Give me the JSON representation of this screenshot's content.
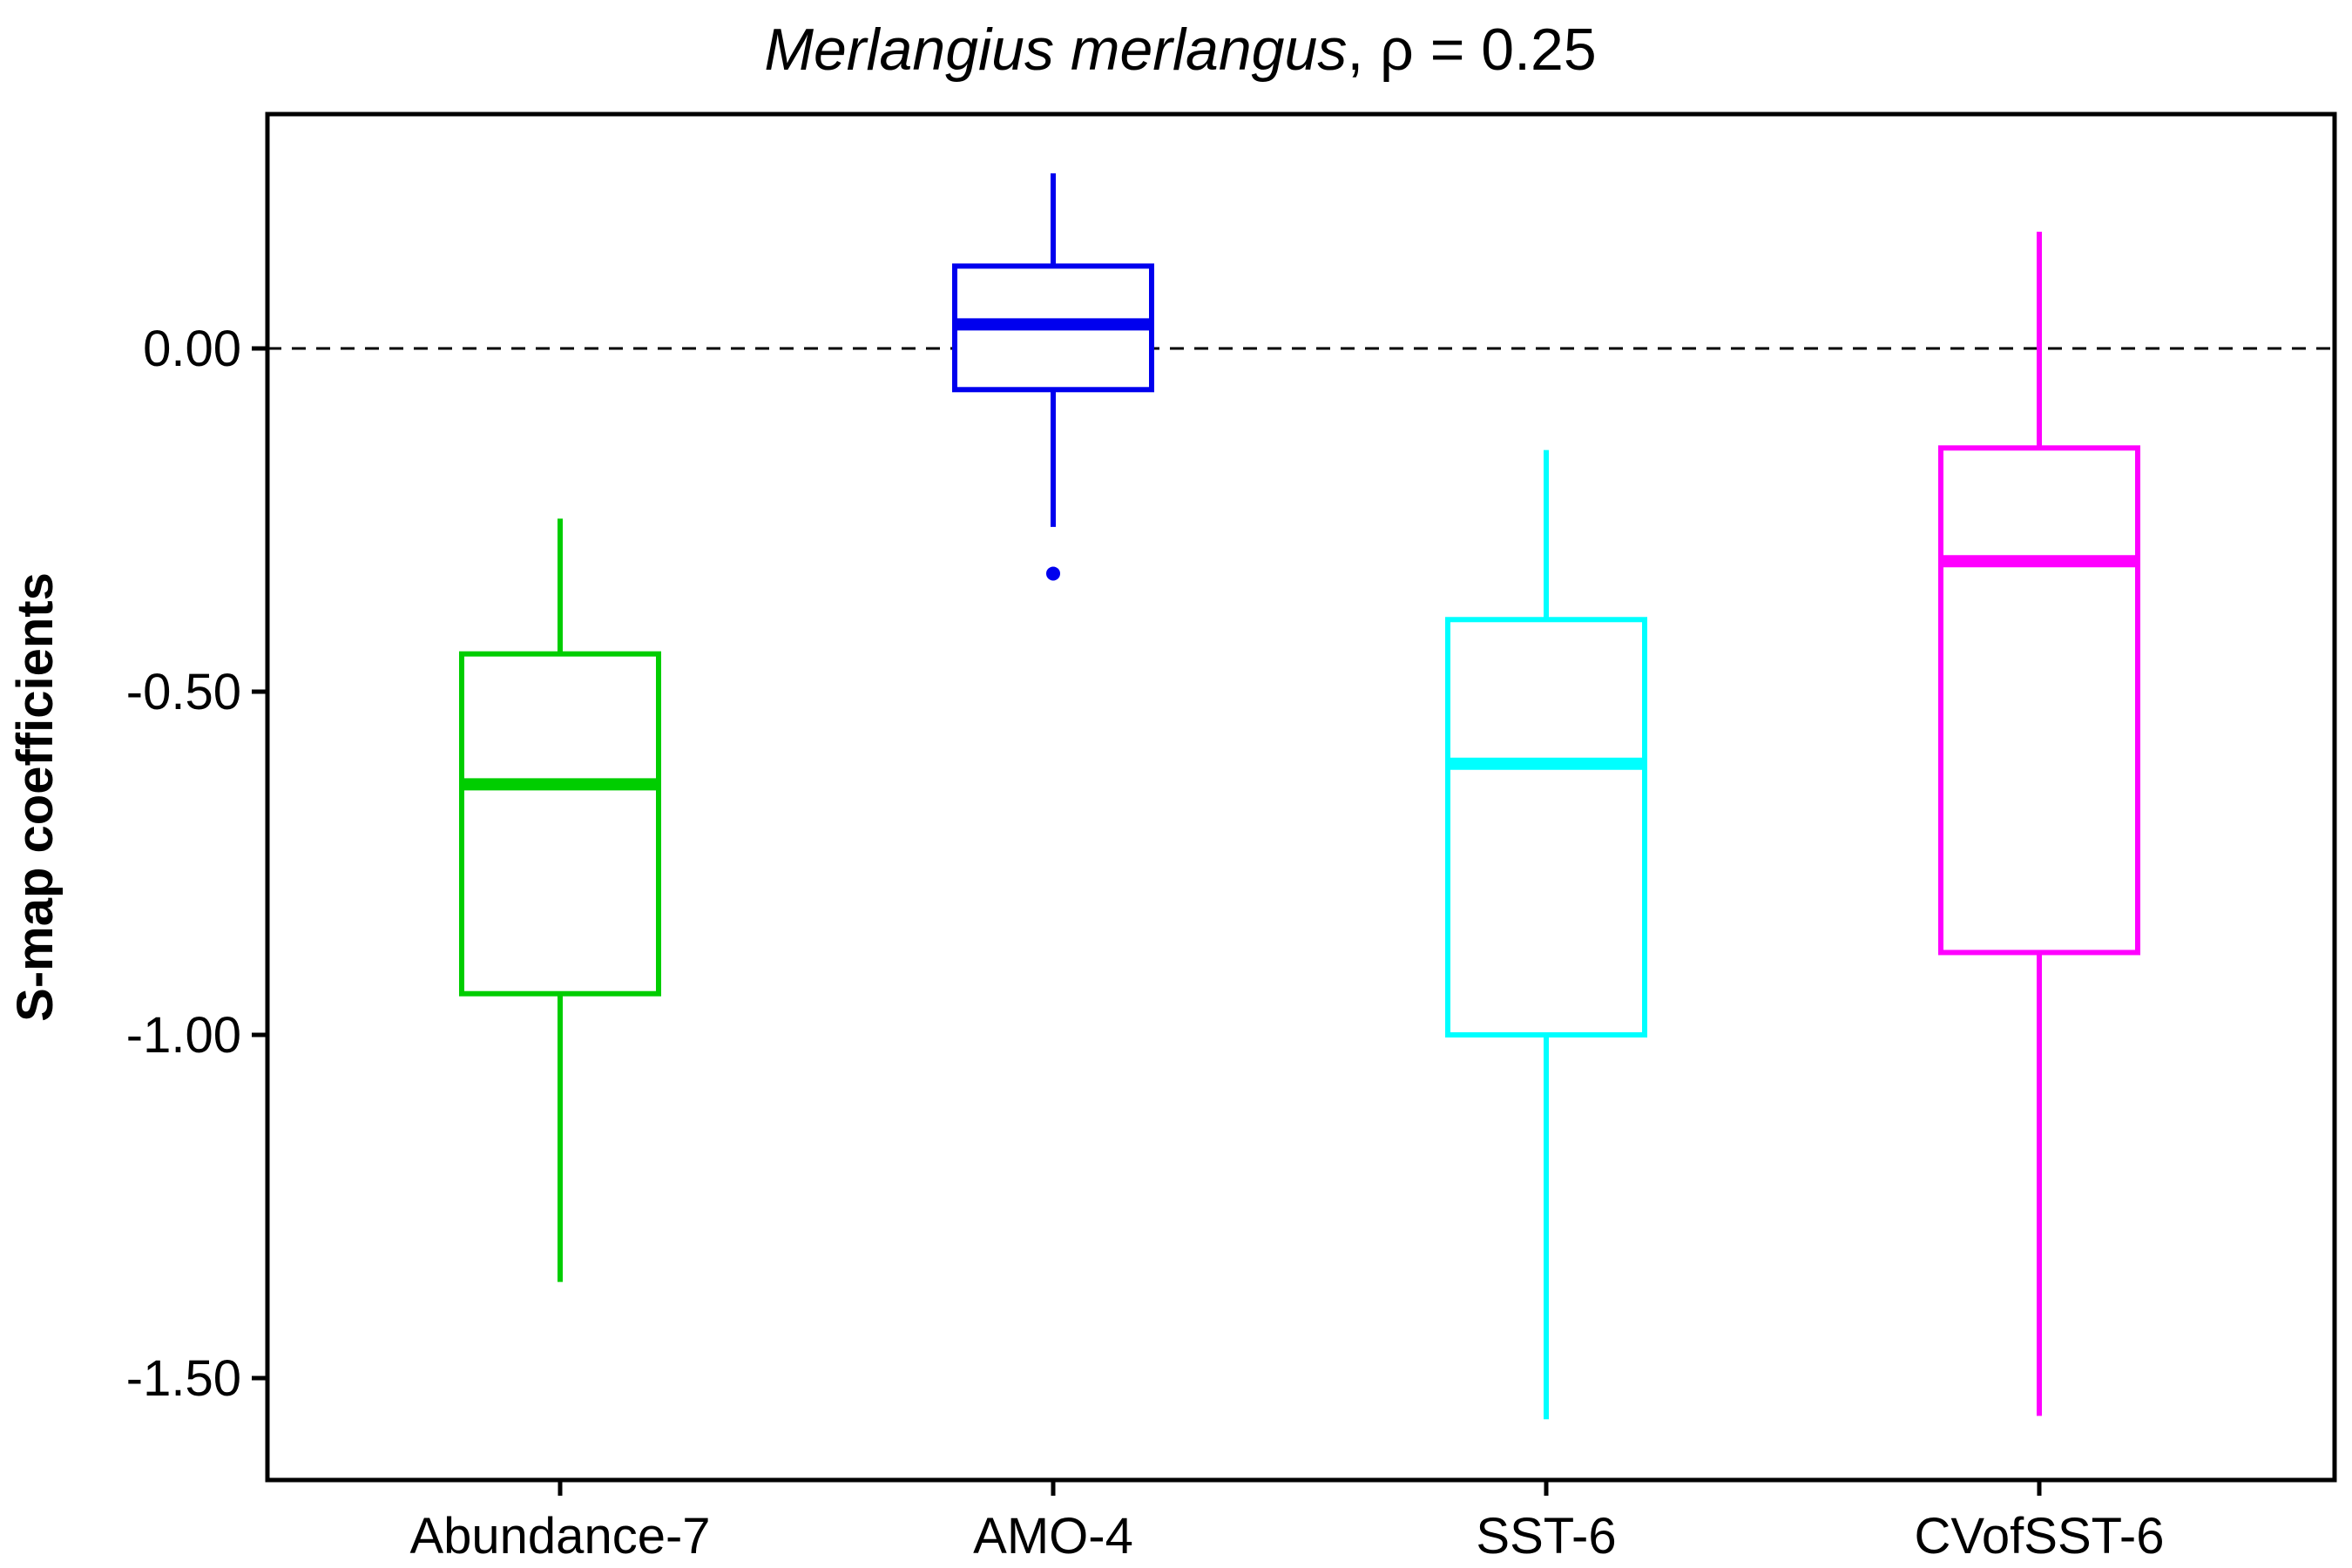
{
  "chart_data": {
    "type": "box",
    "title": {
      "species": "Merlangius merlangus",
      "rest": ", ρ = 0.25"
    },
    "xlabel": "",
    "ylabel": "S-map coefficients",
    "ylim": [
      -1.65,
      0.35
    ],
    "yticks": [
      0.0,
      -0.5,
      -1.0,
      -1.5
    ],
    "ytick_labels": [
      "0.00",
      "-0.50",
      "-1.00",
      "-1.50"
    ],
    "reference_line": 0.0,
    "categories": [
      "Abundance-7",
      "AMO-4",
      "SST-6",
      "CVofSST-6"
    ],
    "series": [
      {
        "name": "Abundance-7",
        "color": "#00cd00",
        "whisker_low": -1.36,
        "q1": -0.94,
        "median": -0.635,
        "q3": -0.445,
        "whisker_high": -0.248,
        "outliers": []
      },
      {
        "name": "AMO-4",
        "color": "#0000ee",
        "whisker_low": -0.26,
        "q1": -0.06,
        "median": 0.035,
        "q3": 0.12,
        "whisker_high": 0.255,
        "outliers": [
          -0.328
        ]
      },
      {
        "name": "SST-6",
        "color": "#00ffff",
        "whisker_low": -1.56,
        "q1": -1.0,
        "median": -0.605,
        "q3": -0.395,
        "whisker_high": -0.148,
        "outliers": []
      },
      {
        "name": "CVofSST-6",
        "color": "#ff00ff",
        "whisker_low": -1.555,
        "q1": -0.88,
        "median": -0.31,
        "q3": -0.145,
        "whisker_high": 0.17,
        "outliers": []
      }
    ]
  }
}
